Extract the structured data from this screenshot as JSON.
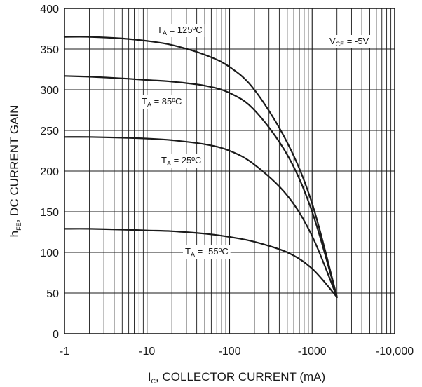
{
  "chart_data": {
    "type": "line",
    "x_scale": "log",
    "xlim": [
      -1,
      -10000
    ],
    "ylim": [
      0,
      400
    ],
    "grid": true,
    "xlabel": {
      "main": "I",
      "sub": "C",
      "rest": ", COLLECTOR CURRENT (mA)"
    },
    "ylabel": {
      "main": "h",
      "sub": "FE",
      "rest": ", DC CURRENT GAIN"
    },
    "x_ticks": [
      {
        "value": -1,
        "label": "-1"
      },
      {
        "value": -10,
        "label": "-10"
      },
      {
        "value": -100,
        "label": "-100"
      },
      {
        "value": -1000,
        "label": "-1000"
      },
      {
        "value": -10000,
        "label": "-10,000"
      }
    ],
    "y_ticks": [
      {
        "value": 0,
        "label": "0"
      },
      {
        "value": 50,
        "label": "50"
      },
      {
        "value": 100,
        "label": "100"
      },
      {
        "value": 150,
        "label": "150"
      },
      {
        "value": 200,
        "label": "200"
      },
      {
        "value": 250,
        "label": "250"
      },
      {
        "value": 300,
        "label": "300"
      },
      {
        "value": 350,
        "label": "350"
      },
      {
        "value": 400,
        "label": "400"
      }
    ],
    "annotation": {
      "main": "V",
      "sub": "CE",
      "rest": " = -5V"
    },
    "series": [
      {
        "name": {
          "main": "T",
          "sub": "A",
          "rest": " = 125ºC"
        },
        "x": [
          -1,
          -2,
          -5,
          -10,
          -20,
          -50,
          -100,
          -200,
          -500,
          -1000,
          -2000
        ],
        "y": [
          365,
          365,
          363,
          360,
          355,
          343,
          328,
          300,
          235,
          160,
          45
        ]
      },
      {
        "name": {
          "main": "T",
          "sub": "A",
          "rest": " = 85ºC"
        },
        "x": [
          -1,
          -2,
          -5,
          -10,
          -20,
          -50,
          -100,
          -200,
          -500,
          -1000,
          -2000
        ],
        "y": [
          317,
          316,
          314,
          312,
          310,
          305,
          296,
          275,
          220,
          150,
          45
        ]
      },
      {
        "name": {
          "main": "T",
          "sub": "A",
          "rest": " = 25ºC"
        },
        "x": [
          -1,
          -2,
          -5,
          -10,
          -20,
          -50,
          -100,
          -200,
          -500,
          -1000,
          -2000
        ],
        "y": [
          242,
          242,
          241,
          240,
          238,
          233,
          225,
          208,
          170,
          120,
          45
        ]
      },
      {
        "name": {
          "main": "T",
          "sub": "A",
          "rest": " = -55ºC"
        },
        "x": [
          -1,
          -2,
          -5,
          -10,
          -20,
          -50,
          -100,
          -200,
          -500,
          -1000,
          -2000
        ],
        "y": [
          129,
          129,
          128,
          127,
          126,
          123,
          119,
          113,
          100,
          80,
          45
        ]
      }
    ]
  }
}
